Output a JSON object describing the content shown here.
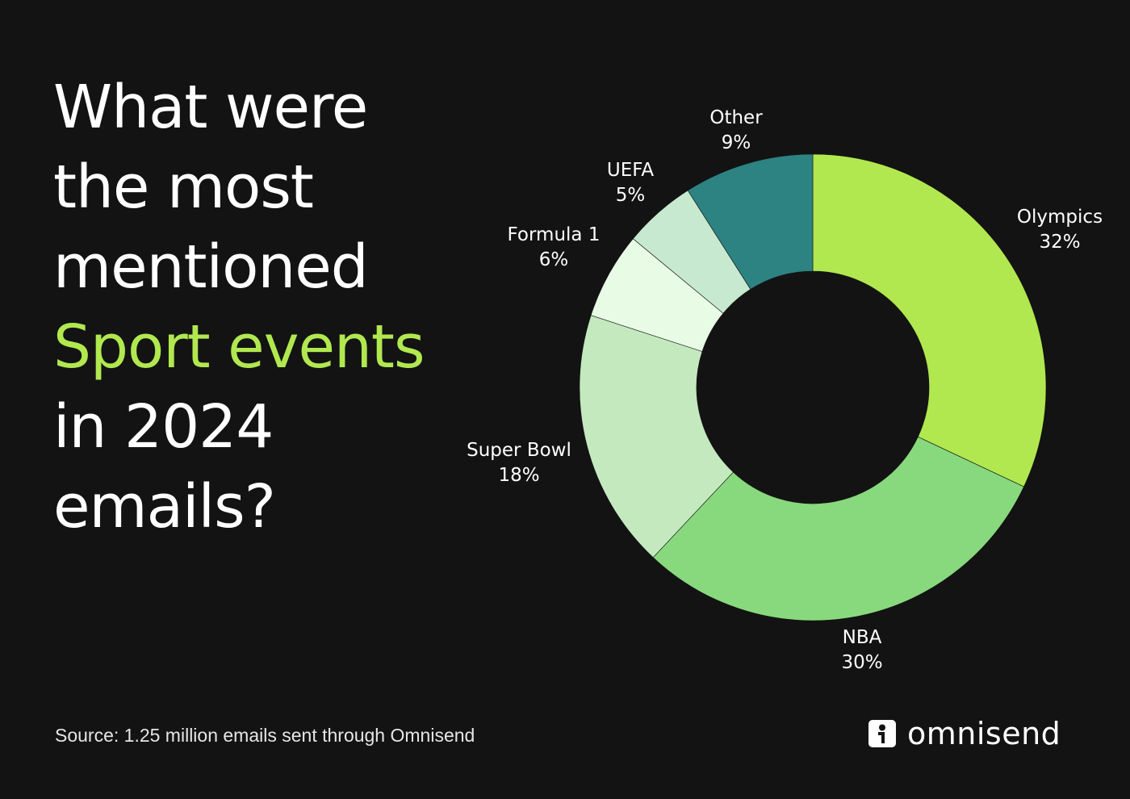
{
  "headline": {
    "line1": "What were",
    "line2": "the most",
    "line3": "mentioned",
    "line4_accent": "Sport events",
    "line5": "in 2024",
    "line6": "emails?"
  },
  "source": "Source: 1.25 million emails sent through Omnisend",
  "brand": {
    "name": "omnisend",
    "icon": "omnisend-logo-icon"
  },
  "colors": {
    "background": "#131313",
    "accent": "#b1e84f",
    "text": "#ffffff"
  },
  "chart_data": {
    "type": "pie",
    "variant": "donut",
    "title": "",
    "start_angle_deg": 0,
    "direction": "clockwise",
    "slices": [
      {
        "label": "Olympics",
        "value": 32,
        "display": "32%",
        "color": "#b1e84f"
      },
      {
        "label": "NBA",
        "value": 30,
        "display": "30%",
        "color": "#88d97d"
      },
      {
        "label": "Super Bowl",
        "value": 18,
        "display": "18%",
        "color": "#c4e9bf"
      },
      {
        "label": "Formula 1",
        "value": 6,
        "display": "6%",
        "color": "#e8fbe5"
      },
      {
        "label": "UEFA",
        "value": 5,
        "display": "5%",
        "color": "#c6e9cf"
      },
      {
        "label": "Other",
        "value": 9,
        "display": "9%",
        "color": "#2d8282"
      }
    ]
  }
}
